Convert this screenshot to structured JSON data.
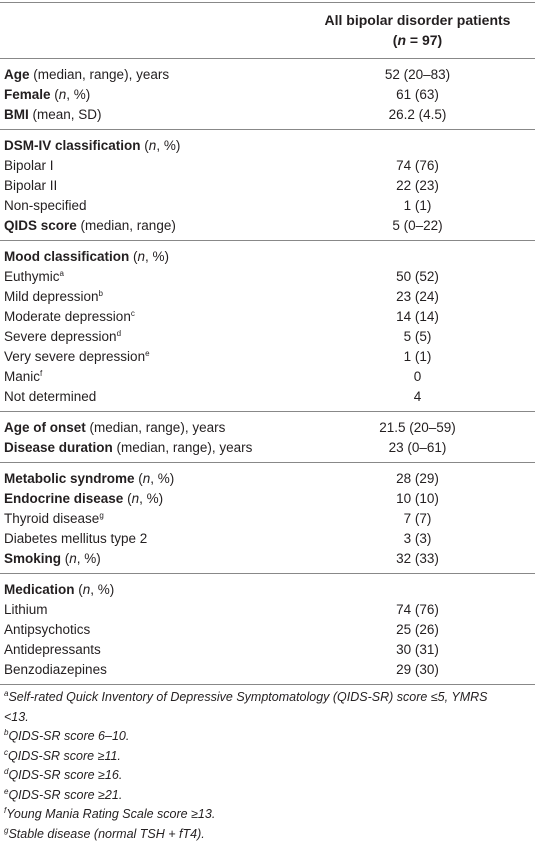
{
  "header": {
    "lines": [
      [
        {
          "text": "All bipolar disorder patients"
        }
      ],
      [
        {
          "text": "("
        },
        {
          "text": "n",
          "style": "i"
        },
        {
          "text": " = 97)"
        }
      ]
    ]
  },
  "sections": [
    {
      "rows": [
        {
          "label": [
            {
              "text": "Age",
              "style": "b"
            },
            {
              "text": " (median, range), years"
            }
          ],
          "value": "52 (20–83)"
        },
        {
          "label": [
            {
              "text": "Female",
              "style": "b"
            },
            {
              "text": " ("
            },
            {
              "text": "n",
              "style": "i"
            },
            {
              "text": ", %)"
            }
          ],
          "value": "61 (63)"
        },
        {
          "label": [
            {
              "text": "BMI",
              "style": "b"
            },
            {
              "text": " (mean, SD)"
            }
          ],
          "value": "26.2 (4.5)"
        }
      ]
    },
    {
      "rows": [
        {
          "label": [
            {
              "text": "DSM-IV classification",
              "style": "b"
            },
            {
              "text": " ("
            },
            {
              "text": "n",
              "style": "i"
            },
            {
              "text": ", %)"
            }
          ]
        },
        {
          "label": [
            {
              "text": "Bipolar I"
            }
          ],
          "value": "74 (76)"
        },
        {
          "label": [
            {
              "text": "Bipolar II"
            }
          ],
          "value": "22 (23)"
        },
        {
          "label": [
            {
              "text": "Non-specified"
            }
          ],
          "value": "1 (1)"
        },
        {
          "label": [
            {
              "text": "QIDS score",
              "style": "b"
            },
            {
              "text": " (median, range)"
            }
          ],
          "value": "5 (0–22)"
        }
      ]
    },
    {
      "rows": [
        {
          "label": [
            {
              "text": "Mood classification",
              "style": "b"
            },
            {
              "text": " ("
            },
            {
              "text": "n",
              "style": "i"
            },
            {
              "text": ", %)"
            }
          ]
        },
        {
          "label": [
            {
              "text": "Euthymic"
            },
            {
              "text": "a",
              "style": "sup"
            }
          ],
          "value": "50 (52)"
        },
        {
          "label": [
            {
              "text": "Mild depression"
            },
            {
              "text": "b",
              "style": "sup"
            }
          ],
          "value": "23 (24)"
        },
        {
          "label": [
            {
              "text": "Moderate depression"
            },
            {
              "text": "c",
              "style": "sup"
            }
          ],
          "value": "14 (14)"
        },
        {
          "label": [
            {
              "text": "Severe depression"
            },
            {
              "text": "d",
              "style": "sup"
            }
          ],
          "value": "5 (5)"
        },
        {
          "label": [
            {
              "text": "Very severe depression"
            },
            {
              "text": "e",
              "style": "sup"
            }
          ],
          "value": "1 (1)"
        },
        {
          "label": [
            {
              "text": "Manic"
            },
            {
              "text": "f",
              "style": "sup"
            }
          ],
          "value": "0"
        },
        {
          "label": [
            {
              "text": "Not determined"
            }
          ],
          "value": "4"
        }
      ]
    },
    {
      "rows": [
        {
          "label": [
            {
              "text": "Age of onset",
              "style": "b"
            },
            {
              "text": " (median, range), years"
            }
          ],
          "value": "21.5 (20–59)"
        },
        {
          "label": [
            {
              "text": "Disease duration",
              "style": "b"
            },
            {
              "text": " (median, range), years"
            }
          ],
          "value": "23 (0–61)"
        }
      ]
    },
    {
      "rows": [
        {
          "label": [
            {
              "text": "Metabolic syndrome",
              "style": "b"
            },
            {
              "text": " ("
            },
            {
              "text": "n",
              "style": "i"
            },
            {
              "text": ", %)"
            }
          ],
          "value": "28 (29)"
        },
        {
          "label": [
            {
              "text": "Endocrine disease",
              "style": "b"
            },
            {
              "text": " ("
            },
            {
              "text": "n",
              "style": "i"
            },
            {
              "text": ", %)"
            }
          ],
          "value": "10 (10)"
        },
        {
          "label": [
            {
              "text": "Thyroid disease"
            },
            {
              "text": "g",
              "style": "sup"
            }
          ],
          "value": "7 (7)"
        },
        {
          "label": [
            {
              "text": "Diabetes mellitus type 2"
            }
          ],
          "value": "3 (3)"
        },
        {
          "label": [
            {
              "text": "Smoking",
              "style": "b"
            },
            {
              "text": " ("
            },
            {
              "text": "n",
              "style": "i"
            },
            {
              "text": ", %)"
            }
          ],
          "value": "32 (33)"
        }
      ]
    },
    {
      "rows": [
        {
          "label": [
            {
              "text": "Medication",
              "style": "b"
            },
            {
              "text": " ("
            },
            {
              "text": "n",
              "style": "i"
            },
            {
              "text": ", %)"
            }
          ]
        },
        {
          "label": [
            {
              "text": "Lithium"
            }
          ],
          "value": "74 (76)"
        },
        {
          "label": [
            {
              "text": "Antipsychotics"
            }
          ],
          "value": "25 (26)"
        },
        {
          "label": [
            {
              "text": "Antidepressants"
            }
          ],
          "value": "30 (31)"
        },
        {
          "label": [
            {
              "text": "Benzodiazepines"
            }
          ],
          "value": "29 (30)"
        }
      ]
    }
  ],
  "footnotes": [
    [
      {
        "text": "a",
        "style": "sup"
      },
      {
        "text": "Self-rated Quick Inventory of Depressive Symptomatology (QIDS-SR) score ≤5, YMRS <13."
      }
    ],
    [
      {
        "text": "b",
        "style": "sup"
      },
      {
        "text": "QIDS-SR score 6–10."
      }
    ],
    [
      {
        "text": "c",
        "style": "sup"
      },
      {
        "text": "QIDS-SR score ≥11."
      }
    ],
    [
      {
        "text": "d",
        "style": "sup"
      },
      {
        "text": "QIDS-SR score ≥16."
      }
    ],
    [
      {
        "text": "e",
        "style": "sup"
      },
      {
        "text": "QIDS-SR score ≥21."
      }
    ],
    [
      {
        "text": "f",
        "style": "sup"
      },
      {
        "text": "Young Mania Rating Scale score ≥13."
      }
    ],
    [
      {
        "text": "g",
        "style": "sup"
      },
      {
        "text": "Stable disease (normal TSH + fT4)."
      }
    ]
  ]
}
